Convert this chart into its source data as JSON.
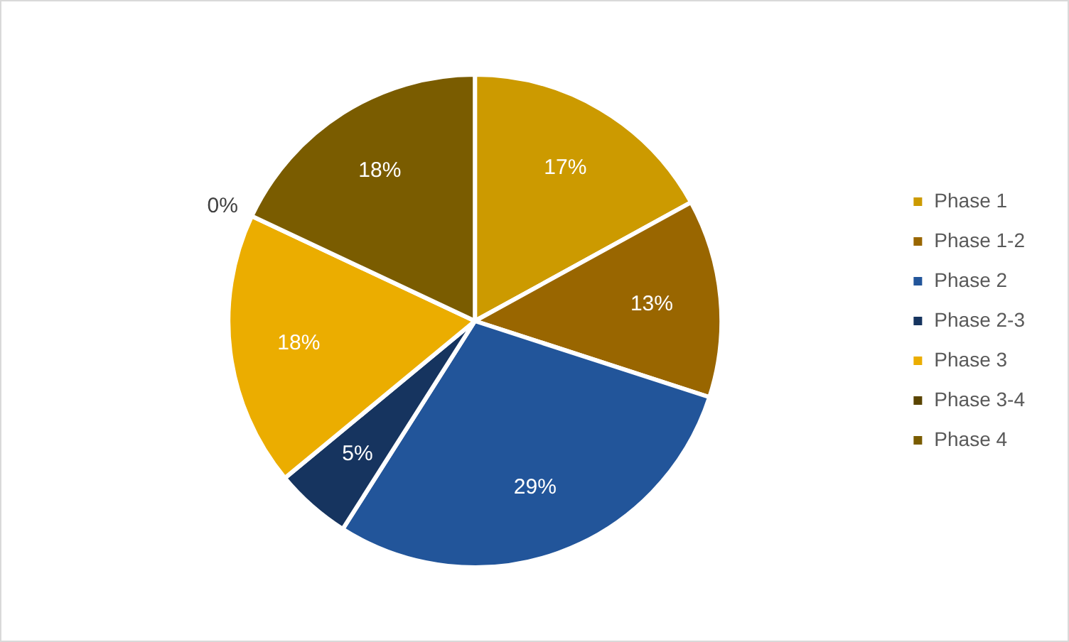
{
  "chart_data": {
    "type": "pie",
    "categories": [
      "Phase 1",
      "Phase 1-2",
      "Phase 2",
      "Phase 2-3",
      "Phase 3",
      "Phase 3-4",
      "Phase 4"
    ],
    "values": [
      17,
      13,
      29,
      5,
      18,
      0,
      18
    ],
    "colors": [
      "#cc9a00",
      "#996600",
      "#22559a",
      "#16345f",
      "#ebad00",
      "#5a4400",
      "#7a5c00"
    ],
    "value_labels": [
      "17%",
      "13%",
      "29%",
      "5%",
      "18%",
      "0%",
      "18%"
    ],
    "legend": "right"
  }
}
